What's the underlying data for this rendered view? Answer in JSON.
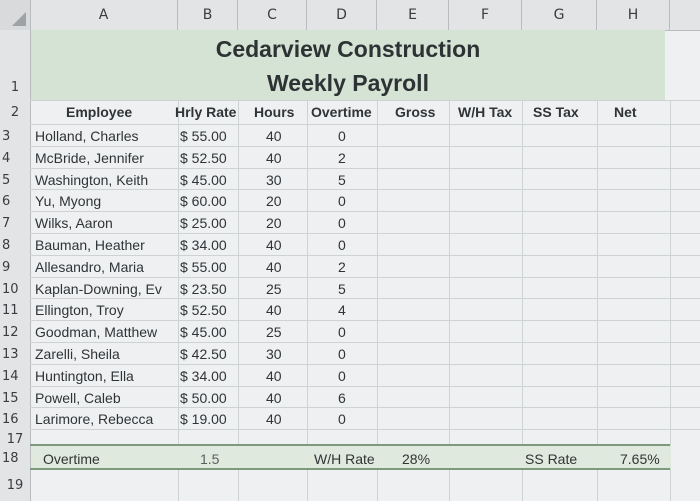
{
  "columns": [
    "A",
    "B",
    "C",
    "D",
    "E",
    "F",
    "G",
    "H"
  ],
  "title": {
    "line1": "Cedarview Construction",
    "line2": "Weekly Payroll"
  },
  "headers": {
    "employee": "Employee",
    "rate": "Hrly Rate",
    "hours": "Hours",
    "overtime": "Overtime",
    "gross": "Gross",
    "wh_tax": "W/H Tax",
    "ss_tax": "SS Tax",
    "net": "Net"
  },
  "rows": [
    {
      "num": "3",
      "name": "Holland, Charles",
      "rate": "$ 55.00",
      "hours": "40",
      "ot": "0"
    },
    {
      "num": "4",
      "name": "McBride, Jennifer",
      "rate": "$ 52.50",
      "hours": "40",
      "ot": "2"
    },
    {
      "num": "5",
      "name": "Washington, Keith",
      "rate": "$ 45.00",
      "hours": "30",
      "ot": "5"
    },
    {
      "num": "6",
      "name": "Yu, Myong",
      "rate": "$ 60.00",
      "hours": "20",
      "ot": "0"
    },
    {
      "num": "7",
      "name": "Wilks, Aaron",
      "rate": "$ 25.00",
      "hours": "20",
      "ot": "0"
    },
    {
      "num": "8",
      "name": "Bauman, Heather",
      "rate": "$ 34.00",
      "hours": "40",
      "ot": "0"
    },
    {
      "num": "9",
      "name": "Allesandro, Maria",
      "rate": "$ 55.00",
      "hours": "40",
      "ot": "2"
    },
    {
      "num": "10",
      "name": "Kaplan-Downing, Ev",
      "rate": "$ 23.50",
      "hours": "25",
      "ot": "5"
    },
    {
      "num": "11",
      "name": "Ellington, Troy",
      "rate": "$ 52.50",
      "hours": "40",
      "ot": "4"
    },
    {
      "num": "12",
      "name": "Goodman, Matthew",
      "rate": "$ 45.00",
      "hours": "25",
      "ot": "0"
    },
    {
      "num": "13",
      "name": "Zarelli, Sheila",
      "rate": "$ 42.50",
      "hours": "30",
      "ot": "0"
    },
    {
      "num": "14",
      "name": "Huntington, Ella",
      "rate": "$ 34.00",
      "hours": "40",
      "ot": "0"
    },
    {
      "num": "15",
      "name": "Powell, Caleb",
      "rate": "$ 50.00",
      "hours": "40",
      "ot": "6"
    },
    {
      "num": "16",
      "name": "Larimore, Rebecca",
      "rate": "$ 19.00",
      "hours": "40",
      "ot": "0"
    }
  ],
  "row_numbers": {
    "r1": "1",
    "r2": "2",
    "r17": "17",
    "r18": "18",
    "r19": "19"
  },
  "footer": {
    "overtime_label": "Overtime",
    "overtime_value": "1.5",
    "wh_rate_label": "W/H Rate",
    "wh_rate_value": "28%",
    "ss_rate_label": "SS Rate",
    "ss_rate_value": "7.65%"
  }
}
